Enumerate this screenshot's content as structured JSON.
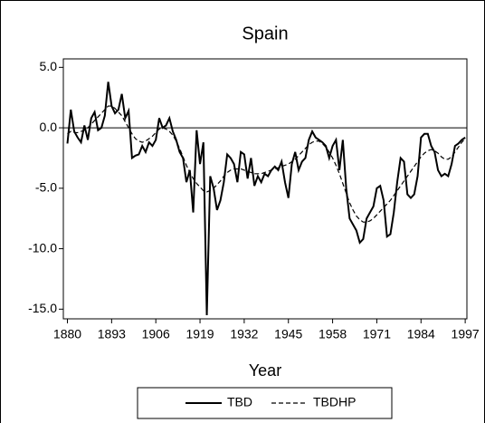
{
  "chart_data": {
    "type": "line",
    "title": "Spain",
    "x_label": "Year",
    "x": [
      1880,
      1881,
      1882,
      1883,
      1884,
      1885,
      1886,
      1887,
      1888,
      1889,
      1890,
      1891,
      1892,
      1893,
      1894,
      1895,
      1896,
      1897,
      1898,
      1899,
      1900,
      1901,
      1902,
      1903,
      1904,
      1905,
      1906,
      1907,
      1908,
      1909,
      1910,
      1911,
      1912,
      1913,
      1914,
      1915,
      1916,
      1917,
      1918,
      1919,
      1920,
      1921,
      1922,
      1923,
      1924,
      1925,
      1926,
      1927,
      1928,
      1929,
      1930,
      1931,
      1932,
      1933,
      1934,
      1935,
      1936,
      1937,
      1938,
      1939,
      1940,
      1941,
      1942,
      1943,
      1944,
      1945,
      1946,
      1947,
      1948,
      1949,
      1950,
      1951,
      1952,
      1953,
      1954,
      1955,
      1956,
      1957,
      1958,
      1959,
      1960,
      1961,
      1962,
      1963,
      1964,
      1965,
      1966,
      1967,
      1968,
      1969,
      1970,
      1971,
      1972,
      1973,
      1974,
      1975,
      1976,
      1977,
      1978,
      1979,
      1980,
      1981,
      1982,
      1983,
      1984,
      1985,
      1986,
      1987,
      1988,
      1989,
      1990,
      1991,
      1992,
      1993,
      1994,
      1995,
      1996,
      1997
    ],
    "series": [
      {
        "name": "TBD",
        "color": "#000000",
        "style": "solid",
        "values": [
          -1.3,
          1.5,
          -0.3,
          -0.8,
          -1.2,
          0.2,
          -1.0,
          0.8,
          1.3,
          -0.2,
          0.0,
          1.0,
          3.8,
          1.8,
          1.2,
          1.5,
          2.8,
          0.8,
          1.4,
          -2.5,
          -2.3,
          -2.2,
          -1.5,
          -2.0,
          -1.2,
          -1.5,
          -1.0,
          0.8,
          0.0,
          0.2,
          0.8,
          -0.3,
          -1.0,
          -2.0,
          -2.5,
          -4.5,
          -3.5,
          -7.0,
          -0.2,
          -3.0,
          -1.2,
          -15.5,
          -4.0,
          -5.0,
          -6.8,
          -6.0,
          -4.5,
          -2.2,
          -2.5,
          -3.0,
          -4.5,
          -2.0,
          -2.2,
          -4.2,
          -2.5,
          -4.8,
          -4.0,
          -4.5,
          -3.8,
          -4.0,
          -3.5,
          -3.2,
          -3.5,
          -2.8,
          -4.5,
          -5.8,
          -3.0,
          -2.0,
          -3.5,
          -2.8,
          -2.5,
          -1.0,
          -0.3,
          -0.8,
          -1.0,
          -1.2,
          -1.5,
          -2.5,
          -1.5,
          -1.0,
          -3.5,
          -1.0,
          -5.0,
          -7.5,
          -8.0,
          -8.5,
          -9.5,
          -9.2,
          -7.5,
          -7.0,
          -6.5,
          -5.0,
          -4.8,
          -6.0,
          -9.0,
          -8.8,
          -7.0,
          -4.5,
          -2.5,
          -2.8,
          -5.5,
          -5.8,
          -5.5,
          -4.0,
          -0.8,
          -0.5,
          -0.5,
          -1.5,
          -2.0,
          -3.5,
          -4.0,
          -3.8,
          -4.0,
          -3.0,
          -1.5,
          -1.3,
          -1.0,
          -0.8
        ]
      },
      {
        "name": "TBDHP",
        "color": "#000000",
        "style": "dashed",
        "values": [
          -0.5,
          -0.3,
          -0.4,
          -0.4,
          -0.3,
          -0.2,
          0.0,
          0.3,
          0.6,
          0.9,
          1.2,
          1.5,
          1.8,
          1.8,
          1.6,
          1.3,
          1.0,
          0.5,
          0.0,
          -0.5,
          -0.9,
          -1.1,
          -1.2,
          -1.1,
          -0.9,
          -0.7,
          -0.4,
          -0.1,
          0.0,
          -0.1,
          -0.3,
          -0.6,
          -1.1,
          -1.7,
          -2.4,
          -3.1,
          -3.7,
          -4.2,
          -4.6,
          -4.9,
          -5.2,
          -5.3,
          -5.2,
          -5.0,
          -4.7,
          -4.4,
          -4.0,
          -3.7,
          -3.5,
          -3.4,
          -3.4,
          -3.4,
          -3.5,
          -3.6,
          -3.7,
          -3.8,
          -3.8,
          -3.8,
          -3.7,
          -3.6,
          -3.5,
          -3.4,
          -3.3,
          -3.2,
          -3.1,
          -3.0,
          -2.8,
          -2.6,
          -2.3,
          -2.0,
          -1.7,
          -1.4,
          -1.2,
          -1.1,
          -1.1,
          -1.3,
          -1.6,
          -2.0,
          -2.5,
          -3.1,
          -3.8,
          -4.6,
          -5.4,
          -6.2,
          -6.8,
          -7.3,
          -7.6,
          -7.8,
          -7.8,
          -7.7,
          -7.5,
          -7.2,
          -6.9,
          -6.6,
          -6.3,
          -6.0,
          -5.6,
          -5.2,
          -4.8,
          -4.4,
          -4.0,
          -3.6,
          -3.2,
          -2.8,
          -2.4,
          -2.1,
          -1.9,
          -1.8,
          -1.9,
          -2.1,
          -2.4,
          -2.6,
          -2.6,
          -2.4,
          -2.0,
          -1.6,
          -1.2,
          -0.9
        ]
      }
    ],
    "xlim": [
      1878.8,
      1997.5
    ],
    "xticks": [
      1880,
      1893,
      1906,
      1919,
      1932,
      1945,
      1958,
      1971,
      1984,
      1997
    ],
    "ylim": [
      -15.8,
      5.7
    ],
    "yticks": [
      {
        "value": 5,
        "label": "5.0"
      },
      {
        "value": 0,
        "label": "0.0"
      },
      {
        "value": -5,
        "label": "-5.0"
      },
      {
        "value": -10,
        "label": "-10.0"
      },
      {
        "value": -15,
        "label": "-15.0"
      }
    ],
    "zero_line": true,
    "legend": "bottom"
  }
}
